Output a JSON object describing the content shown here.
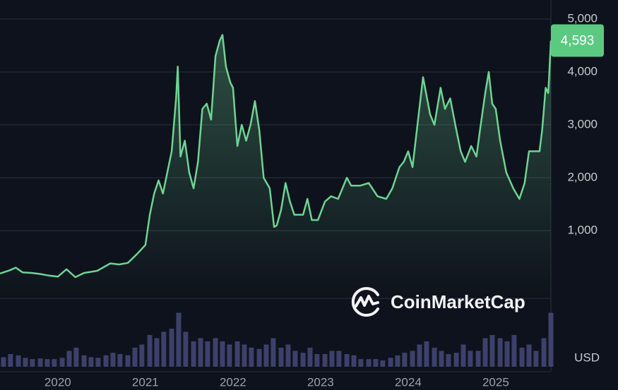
{
  "chart_data": {
    "type": "line",
    "x": [
      2019.34,
      2019.45,
      2019.52,
      2019.6,
      2019.7,
      2019.8,
      2019.9,
      2020.0,
      2020.1,
      2020.2,
      2020.3,
      2020.45,
      2020.6,
      2020.7,
      2020.8,
      2020.9,
      2021.0,
      2021.05,
      2021.1,
      2021.15,
      2021.2,
      2021.25,
      2021.3,
      2021.35,
      2021.37,
      2021.4,
      2021.45,
      2021.5,
      2021.55,
      2021.6,
      2021.65,
      2021.7,
      2021.75,
      2021.8,
      2021.85,
      2021.88,
      2021.92,
      2021.97,
      2022.0,
      2022.05,
      2022.1,
      2022.15,
      2022.2,
      2022.25,
      2022.3,
      2022.35,
      2022.42,
      2022.47,
      2022.5,
      2022.55,
      2022.6,
      2022.65,
      2022.7,
      2022.8,
      2022.85,
      2022.9,
      2022.97,
      2023.05,
      2023.12,
      2023.2,
      2023.25,
      2023.3,
      2023.35,
      2023.45,
      2023.55,
      2023.65,
      2023.75,
      2023.82,
      2023.9,
      2023.95,
      2024.0,
      2024.05,
      2024.12,
      2024.17,
      2024.25,
      2024.3,
      2024.37,
      2024.42,
      2024.48,
      2024.55,
      2024.6,
      2024.65,
      2024.72,
      2024.78,
      2024.82,
      2024.88,
      2024.92,
      2024.96,
      2025.0,
      2025.05,
      2025.12,
      2025.2,
      2025.27,
      2025.33,
      2025.38,
      2025.45,
      2025.5,
      2025.53,
      2025.57,
      2025.6,
      2025.63
    ],
    "series": [
      {
        "color": "#6fd392",
        "values": [
          190,
          250,
          300,
          210,
          200,
          180,
          150,
          130,
          270,
          120,
          200,
          240,
          380,
          360,
          390,
          550,
          730,
          1300,
          1700,
          1950,
          1700,
          2100,
          2500,
          3500,
          4100,
          2400,
          2700,
          2100,
          1800,
          2300,
          3300,
          3400,
          3100,
          4300,
          4600,
          4700,
          4100,
          3800,
          3700,
          2600,
          3000,
          2700,
          3000,
          3450,
          2900,
          2000,
          1800,
          1070,
          1100,
          1400,
          1900,
          1550,
          1300,
          1300,
          1600,
          1200,
          1200,
          1550,
          1650,
          1600,
          1800,
          2000,
          1850,
          1850,
          1900,
          1650,
          1600,
          1800,
          2200,
          2300,
          2500,
          2200,
          3200,
          3900,
          3200,
          3000,
          3700,
          3300,
          3500,
          2900,
          2500,
          2300,
          2600,
          2400,
          2900,
          3600,
          4000,
          3400,
          3300,
          2700,
          2100,
          1800,
          1600,
          1900,
          2500,
          2500,
          2500,
          2900,
          3700,
          3600,
          4593
        ]
      }
    ],
    "volume": {
      "axis": "y2",
      "color": "#454a78",
      "x": [
        2019.38,
        2019.46,
        2019.55,
        2019.63,
        2019.71,
        2019.8,
        2019.88,
        2019.96,
        2020.05,
        2020.13,
        2020.21,
        2020.3,
        2020.38,
        2020.46,
        2020.55,
        2020.63,
        2020.71,
        2020.8,
        2020.88,
        2020.96,
        2021.05,
        2021.13,
        2021.21,
        2021.3,
        2021.38,
        2021.46,
        2021.55,
        2021.63,
        2021.71,
        2021.8,
        2021.88,
        2021.96,
        2022.05,
        2022.13,
        2022.21,
        2022.3,
        2022.38,
        2022.46,
        2022.55,
        2022.63,
        2022.71,
        2022.8,
        2022.88,
        2022.96,
        2023.05,
        2023.13,
        2023.21,
        2023.3,
        2023.38,
        2023.46,
        2023.55,
        2023.63,
        2023.71,
        2023.8,
        2023.88,
        2023.96,
        2024.05,
        2024.13,
        2024.21,
        2024.3,
        2024.38,
        2024.46,
        2024.55,
        2024.63,
        2024.71,
        2024.8,
        2024.88,
        2024.96,
        2025.05,
        2025.13,
        2025.21,
        2025.3,
        2025.38,
        2025.46,
        2025.55,
        2025.63
      ],
      "values": [
        15,
        20,
        18,
        14,
        12,
        13,
        12,
        12,
        14,
        25,
        30,
        18,
        15,
        14,
        18,
        22,
        20,
        18,
        30,
        35,
        50,
        45,
        55,
        60,
        85,
        55,
        40,
        45,
        40,
        45,
        40,
        35,
        40,
        35,
        30,
        28,
        35,
        45,
        30,
        35,
        25,
        22,
        30,
        20,
        20,
        25,
        25,
        20,
        18,
        12,
        12,
        12,
        10,
        14,
        18,
        22,
        25,
        35,
        40,
        30,
        25,
        20,
        22,
        35,
        25,
        25,
        45,
        50,
        45,
        40,
        50,
        30,
        35,
        25,
        45,
        85
      ]
    },
    "xlim": [
      2019.34,
      2025.63
    ],
    "xticks": [
      2020,
      2021,
      2022,
      2023,
      2024,
      2025
    ],
    "ylim": [
      0,
      5360
    ],
    "yticks": [
      {
        "value": 1000,
        "label": "1,000"
      },
      {
        "value": 2000,
        "label": "2,000"
      },
      {
        "value": 3000,
        "label": "3,000"
      },
      {
        "value": 4000,
        "label": "4,000"
      },
      {
        "value": 5000,
        "label": "5,000"
      }
    ],
    "y2lim": [
      0,
      100
    ],
    "grid": true,
    "unit_label": "USD",
    "watermark": "CoinMarketCap",
    "last_price": {
      "value": 4593,
      "label": "4,593",
      "color": "#5cc981"
    }
  }
}
